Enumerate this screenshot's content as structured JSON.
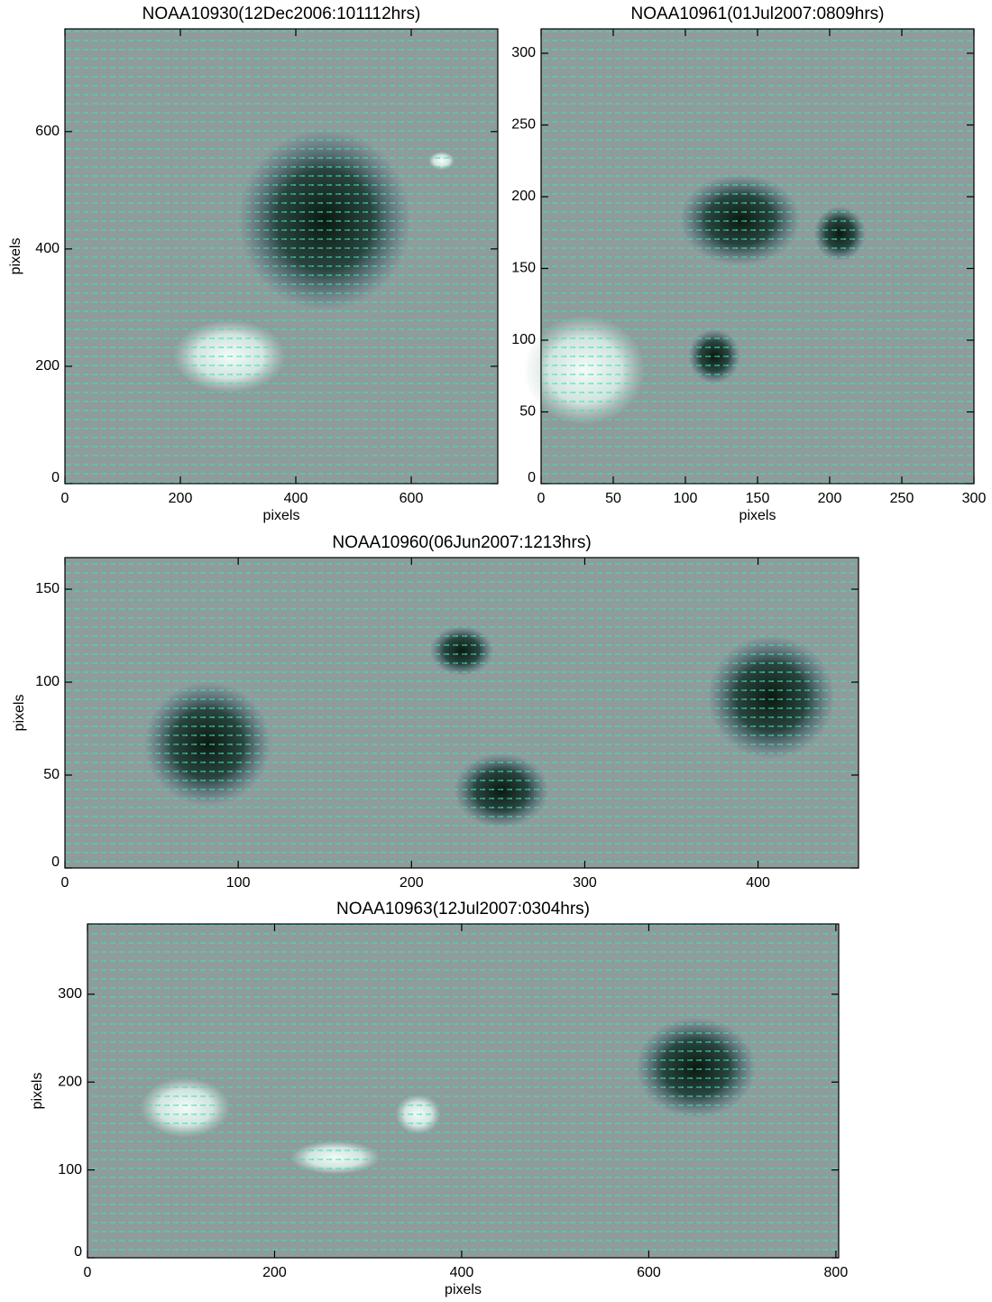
{
  "chart_data": [
    {
      "type": "image",
      "title": "NOAA10930(12Dec2006:101112hrs)",
      "xlabel": "pixels",
      "ylabel": "pixels",
      "xlim": [
        0,
        750
      ],
      "ylim": [
        0,
        775
      ],
      "xticks": [
        0,
        200,
        400,
        600
      ],
      "yticks": [
        0,
        200,
        400,
        600
      ]
    },
    {
      "type": "image",
      "title": "NOAA10961(01Jul2007:0809hrs)",
      "xlabel": "pixels",
      "xlim": [
        0,
        300
      ],
      "ylim": [
        0,
        317
      ],
      "xticks": [
        0,
        50,
        100,
        150,
        200,
        250,
        300
      ],
      "yticks": [
        0,
        50,
        100,
        150,
        200,
        250,
        300
      ]
    },
    {
      "type": "image",
      "title": "NOAA10960(06Jun2007:1213hrs)",
      "ylabel": "pixels",
      "xlim": [
        0,
        458
      ],
      "ylim": [
        0,
        167
      ],
      "xticks": [
        0,
        100,
        200,
        300,
        400
      ],
      "yticks": [
        0,
        50,
        100,
        150
      ]
    },
    {
      "type": "image",
      "title": "NOAA10963(12Jul2007:0304hrs)",
      "xlabel": "pixels",
      "ylabel": "pixels",
      "xlim": [
        0,
        803
      ],
      "ylim": [
        0,
        380
      ],
      "xticks": [
        0,
        200,
        400,
        600,
        800
      ],
      "yticks": [
        0,
        100,
        200,
        300
      ]
    }
  ]
}
